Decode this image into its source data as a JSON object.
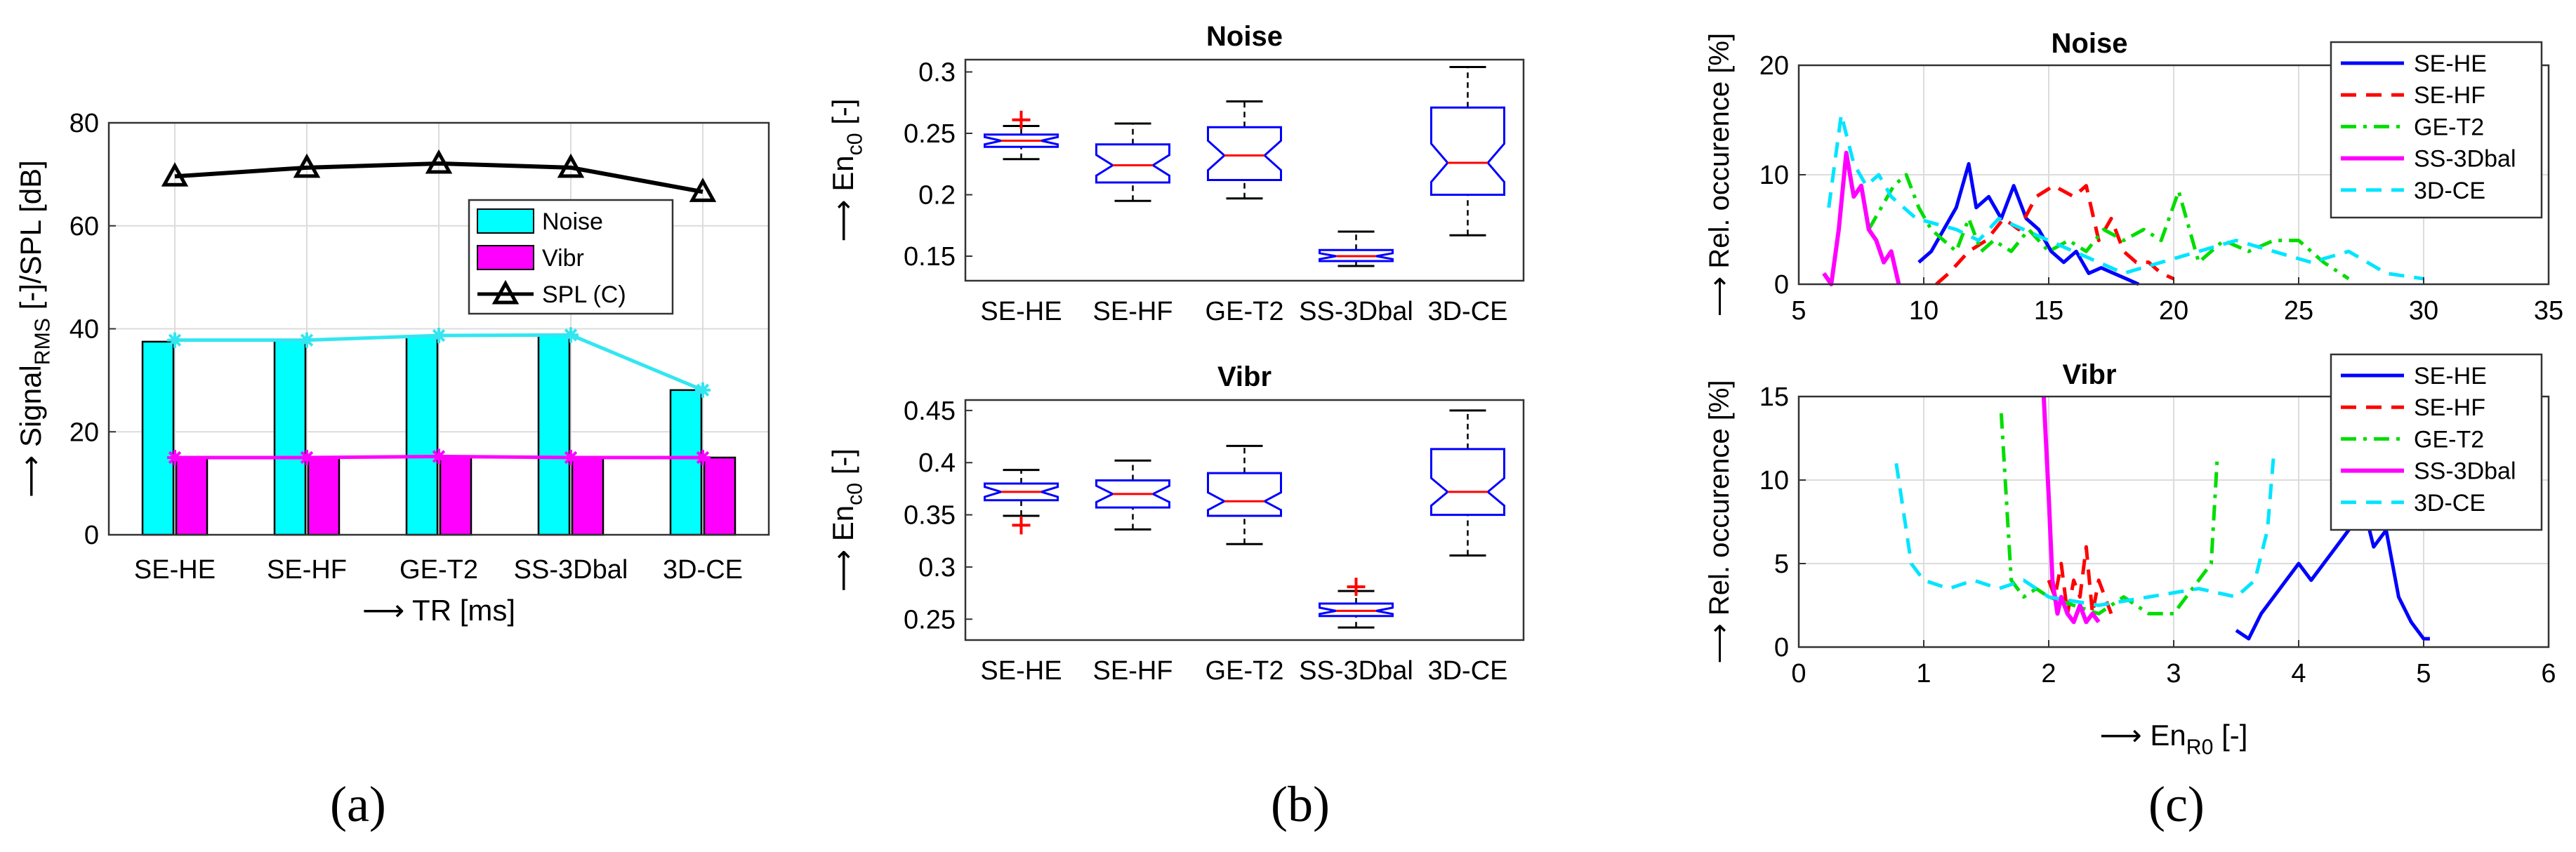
{
  "captions": [
    "(a)",
    "(b)",
    "(c)"
  ],
  "chart_data": [
    {
      "id": "a",
      "type": "bar",
      "categories": [
        "SE-HE",
        "SE-HF",
        "GE-T2",
        "SS-3Dbal",
        "3D-CE"
      ],
      "xlabel": "⟶ TR [ms]",
      "ylabel": "⟶ Signal",
      "ylabel_sub": "RMS",
      "ylabel_tail": " [-]/SPL [dB]",
      "ylim": [
        0,
        80
      ],
      "yticks": [
        0,
        20,
        40,
        60,
        80
      ],
      "grid": true,
      "legend_position": "center-right",
      "series": [
        {
          "name": "Noise",
          "kind": "bar",
          "color": "#00ffff",
          "values": [
            37.5,
            37.8,
            38.6,
            38.8,
            28.1
          ]
        },
        {
          "name": "Vibr",
          "kind": "bar",
          "color": "#ff00ff",
          "values": [
            15.0,
            15.0,
            15.2,
            15.0,
            15.0
          ]
        },
        {
          "name": "SPL (C)",
          "kind": "line",
          "color": "#000000",
          "marker": "triangle",
          "values": [
            69.6,
            71.3,
            72.1,
            71.3,
            66.6
          ]
        }
      ],
      "overlay_lines": [
        {
          "color": "#33e6f0",
          "marker": "star",
          "values": [
            37.8,
            37.8,
            38.7,
            38.8,
            28.1
          ]
        },
        {
          "color": "#ff00ff",
          "marker": "star",
          "values": [
            15.0,
            15.0,
            15.2,
            15.0,
            15.0
          ]
        }
      ]
    },
    {
      "id": "b-noise",
      "type": "box",
      "title": "Noise",
      "categories": [
        "SE-HE",
        "SE-HF",
        "GE-T2",
        "SS-3Dbal",
        "3D-CE"
      ],
      "ylabel": "⟶ En",
      "ylabel_sub": "c0",
      "ylabel_tail": " [-]",
      "ylim": [
        0.13,
        0.31
      ],
      "yticks": [
        0.15,
        0.2,
        0.25,
        0.3
      ],
      "ytick_labels": [
        "0.15",
        "0.2",
        "0.25",
        "0.3"
      ],
      "grid": false,
      "boxes": [
        {
          "whisker_low": 0.229,
          "q1": 0.239,
          "median": 0.244,
          "q3": 0.249,
          "whisker_high": 0.256,
          "outliers": [
            0.261
          ]
        },
        {
          "whisker_low": 0.195,
          "q1": 0.21,
          "median": 0.224,
          "q3": 0.241,
          "whisker_high": 0.258,
          "outliers": []
        },
        {
          "whisker_low": 0.197,
          "q1": 0.212,
          "median": 0.232,
          "q3": 0.255,
          "whisker_high": 0.276,
          "outliers": []
        },
        {
          "whisker_low": 0.142,
          "q1": 0.146,
          "median": 0.15,
          "q3": 0.155,
          "whisker_high": 0.17,
          "outliers": []
        },
        {
          "whisker_low": 0.167,
          "q1": 0.2,
          "median": 0.226,
          "q3": 0.271,
          "whisker_high": 0.304,
          "outliers": []
        }
      ]
    },
    {
      "id": "b-vibr",
      "type": "box",
      "title": "Vibr",
      "categories": [
        "SE-HE",
        "SE-HF",
        "GE-T2",
        "SS-3Dbal",
        "3D-CE"
      ],
      "ylabel": "⟶ En",
      "ylabel_sub": "c0",
      "ylabel_tail": " [-]",
      "ylim": [
        0.23,
        0.46
      ],
      "yticks": [
        0.25,
        0.3,
        0.35,
        0.4,
        0.45
      ],
      "ytick_labels": [
        "0.25",
        "0.3",
        "0.35",
        "0.4",
        "0.45"
      ],
      "grid": false,
      "boxes": [
        {
          "whisker_low": 0.349,
          "q1": 0.364,
          "median": 0.372,
          "q3": 0.38,
          "whisker_high": 0.393,
          "outliers": [
            0.34
          ]
        },
        {
          "whisker_low": 0.336,
          "q1": 0.357,
          "median": 0.37,
          "q3": 0.383,
          "whisker_high": 0.402,
          "outliers": []
        },
        {
          "whisker_low": 0.322,
          "q1": 0.349,
          "median": 0.363,
          "q3": 0.39,
          "whisker_high": 0.416,
          "outliers": []
        },
        {
          "whisker_low": 0.242,
          "q1": 0.253,
          "median": 0.258,
          "q3": 0.265,
          "whisker_high": 0.277,
          "outliers": [
            0.281
          ]
        },
        {
          "whisker_low": 0.311,
          "q1": 0.35,
          "median": 0.372,
          "q3": 0.413,
          "whisker_high": 0.45,
          "outliers": []
        }
      ]
    },
    {
      "id": "c-noise",
      "type": "line",
      "title": "Noise",
      "ylabel": "⟶ Rel. occurence [%]",
      "xlim": [
        5,
        35
      ],
      "ylim": [
        0,
        20
      ],
      "xticks": [
        5,
        10,
        15,
        20,
        25,
        30,
        35
      ],
      "yticks": [
        0,
        10,
        20
      ],
      "grid": true,
      "legend_position": "top-right",
      "series": [
        {
          "name": "SE-HE",
          "color": "#0000ff",
          "dash": "",
          "width": 5,
          "x": [
            9.8,
            10.3,
            10.8,
            11.3,
            11.8,
            12.1,
            12.6,
            13.1,
            13.6,
            14.1,
            14.6,
            15.1,
            15.6,
            16.1,
            16.6,
            17.1,
            17.6,
            18.1,
            18.6
          ],
          "y": [
            2,
            3,
            5,
            7,
            11,
            7,
            8,
            6,
            9,
            6,
            5,
            3,
            2,
            3,
            1,
            1.5,
            1,
            0.5,
            0
          ]
        },
        {
          "name": "SE-HF",
          "color": "#ff0000",
          "dash": "22,14",
          "width": 5,
          "x": [
            10.5,
            11,
            11.8,
            12.5,
            13.2,
            13.8,
            14.5,
            15.2,
            16,
            16.5,
            17,
            17.5,
            18,
            18.5,
            19,
            19.5,
            20
          ],
          "y": [
            0,
            1,
            3,
            4,
            6,
            5,
            8,
            9,
            8,
            9,
            4,
            6,
            3,
            2,
            2,
            1,
            0.5
          ]
        },
        {
          "name": "GE-T2",
          "color": "#00dd00",
          "dash": "22,10,5,10",
          "width": 5,
          "x": [
            7.8,
            8.3,
            8.8,
            9.3,
            9.8,
            10.3,
            10.8,
            11.3,
            11.8,
            12.3,
            12.8,
            13.5,
            14.2,
            15,
            15.8,
            16.5,
            17.2,
            18,
            18.8,
            19.5,
            20.2,
            21,
            22,
            23,
            24,
            25,
            26,
            27
          ],
          "y": [
            5,
            7,
            9,
            10,
            7,
            5,
            4,
            3,
            6,
            3,
            4,
            3,
            5,
            3,
            4,
            3,
            5,
            4,
            5,
            4,
            8.5,
            2,
            4,
            3,
            4,
            4,
            2,
            0.5
          ]
        },
        {
          "name": "SS-3Dbal",
          "color": "#ff00ff",
          "dash": "",
          "width": 6,
          "x": [
            6,
            6.3,
            6.6,
            6.9,
            7.2,
            7.5,
            7.8,
            8.1,
            8.4,
            8.7,
            9
          ],
          "y": [
            1,
            0,
            5,
            12,
            8,
            9,
            5,
            4,
            2,
            3,
            0
          ]
        },
        {
          "name": "3D-CE",
          "color": "#00e5ff",
          "dash": "22,14",
          "width": 5,
          "x": [
            6.2,
            6.7,
            7.2,
            7.7,
            8.2,
            8.7,
            9.2,
            9.7,
            10.5,
            11.3,
            12.2,
            13,
            14,
            15,
            16,
            17,
            18,
            19.5,
            21,
            22.5,
            24,
            25.5,
            27,
            28.5,
            30
          ],
          "y": [
            7,
            15.5,
            11,
            9,
            10,
            8,
            7,
            6,
            5.5,
            5,
            4,
            6,
            5,
            4,
            3,
            2,
            1,
            2,
            3,
            4,
            3,
            2,
            3,
            1,
            0.5
          ]
        }
      ]
    },
    {
      "id": "c-vibr",
      "type": "line",
      "title": "Vibr",
      "xlabel": "⟶ En",
      "xlabel_sub": "R0",
      "xlabel_tail": " [-]",
      "ylabel": "⟶ Rel. occurence [%]",
      "xlim": [
        0,
        6
      ],
      "ylim": [
        0,
        15
      ],
      "xticks": [
        0,
        1,
        2,
        3,
        4,
        5,
        6
      ],
      "yticks": [
        0,
        5,
        10,
        15
      ],
      "grid": true,
      "legend_position": "top-right",
      "series": [
        {
          "name": "SE-HE",
          "color": "#0000ff",
          "dash": "",
          "width": 5,
          "x": [
            3.5,
            3.6,
            3.7,
            3.8,
            3.9,
            4.0,
            4.1,
            4.2,
            4.3,
            4.4,
            4.5,
            4.6,
            4.7,
            4.8,
            4.9,
            5.0,
            5.05
          ],
          "y": [
            1,
            0.5,
            2,
            3,
            4,
            5,
            4,
            5,
            6,
            7,
            9,
            6,
            7,
            3,
            1.5,
            0.5,
            0.5
          ]
        },
        {
          "name": "SE-HF",
          "color": "#ff0000",
          "dash": "22,14",
          "width": 5,
          "x": [
            2.0,
            2.05,
            2.1,
            2.15,
            2.2,
            2.25,
            2.3,
            2.35,
            2.4,
            2.45,
            2.5
          ],
          "y": [
            4,
            3,
            5,
            2,
            4,
            3,
            6,
            2,
            4,
            3,
            2
          ]
        },
        {
          "name": "GE-T2",
          "color": "#00dd00",
          "dash": "22,10,5,10",
          "width": 5,
          "x": [
            1.62,
            1.7,
            1.8,
            1.9,
            2.0,
            2.2,
            2.4,
            2.6,
            2.8,
            3.0,
            3.1,
            3.2,
            3.3,
            3.35
          ],
          "y": [
            14,
            4,
            3,
            3.5,
            3,
            2.5,
            2,
            3,
            2,
            2,
            3,
            4,
            5,
            11.5
          ]
        },
        {
          "name": "SS-3Dbal",
          "color": "#ff00ff",
          "dash": "",
          "width": 6,
          "x": [
            1.96,
            2.0,
            2.03,
            2.07,
            2.1,
            2.15,
            2.2,
            2.25,
            2.3,
            2.35,
            2.4
          ],
          "y": [
            15,
            9,
            4,
            2,
            3,
            2,
            1.5,
            2.5,
            1.5,
            2,
            1.5
          ]
        },
        {
          "name": "3D-CE",
          "color": "#00e5ff",
          "dash": "22,14",
          "width": 5,
          "x": [
            0.78,
            0.9,
            1.0,
            1.2,
            1.4,
            1.6,
            1.8,
            2.0,
            2.4,
            2.8,
            3.2,
            3.5,
            3.65,
            3.75,
            3.8
          ],
          "y": [
            11,
            5,
            4,
            3.5,
            4,
            3.5,
            4,
            3,
            2.5,
            3,
            3.5,
            3,
            4,
            7,
            11.5
          ]
        }
      ]
    }
  ]
}
